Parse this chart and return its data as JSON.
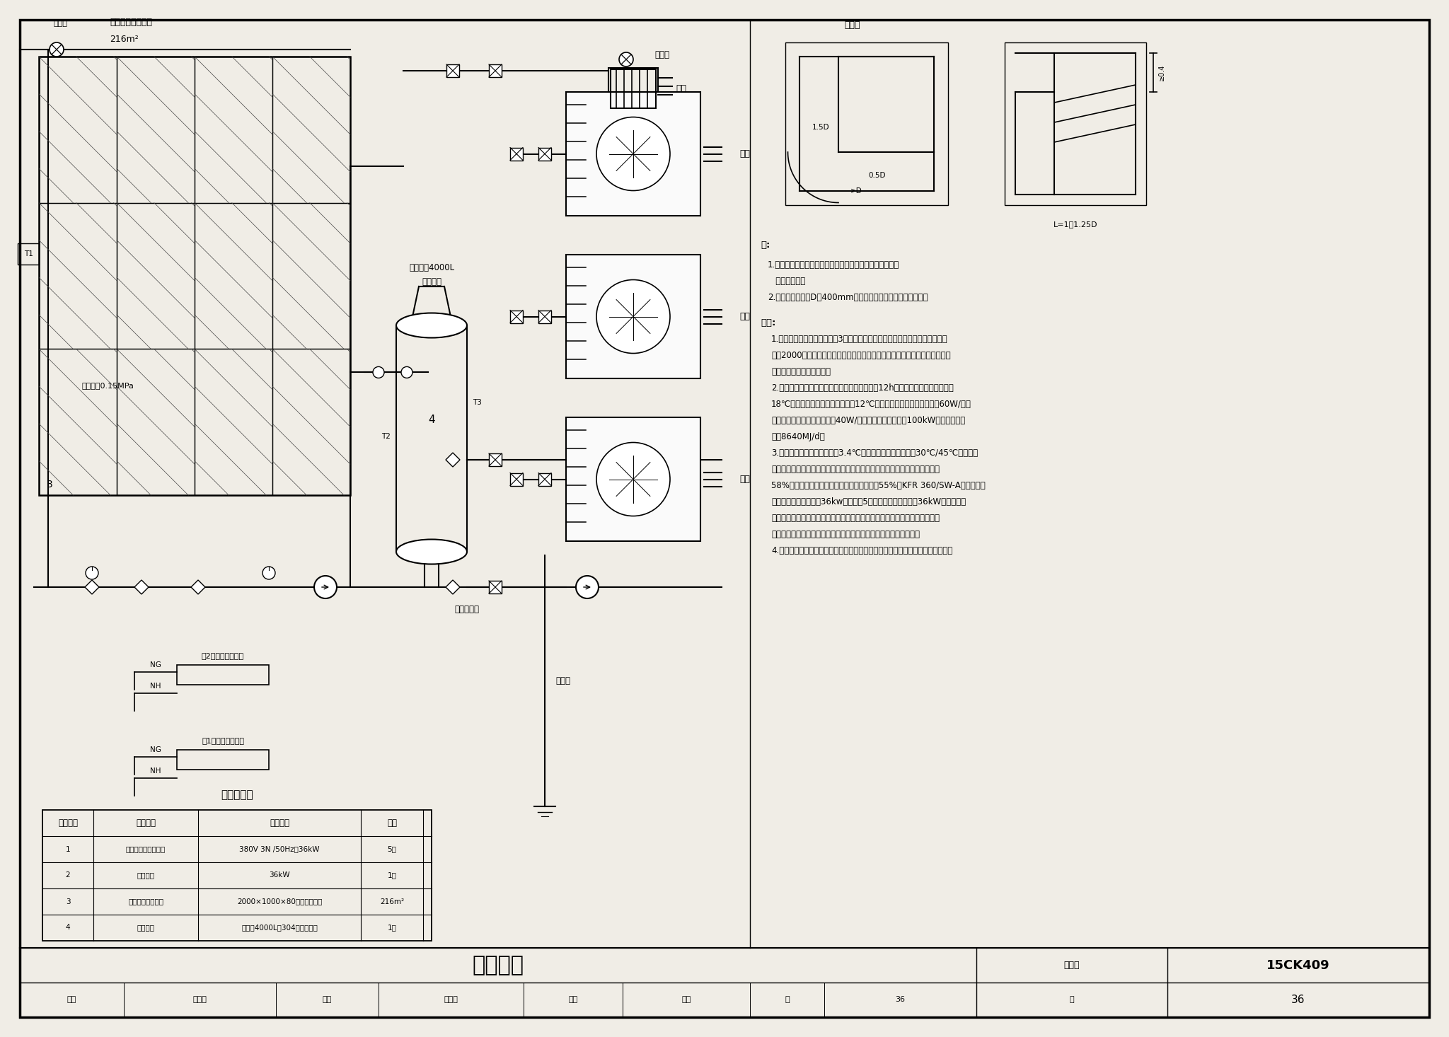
{
  "bg": "#f0ede6",
  "white": "#ffffff",
  "black": "#000000",
  "title_main": "工程实例",
  "title_num_label": "图集号",
  "title_num_value": "15CK409",
  "page_label": "页",
  "page_value": "36",
  "review_label": "审核",
  "review_name": "钟家淞",
  "check_label": "校对",
  "check_name": "王柱小",
  "design_label": "设计",
  "design_name": "李红",
  "table_title": "主要设备表",
  "table_headers": [
    "设备编号",
    "设备名称",
    "规格型号",
    "数量"
  ],
  "table_rows": [
    [
      "1",
      "空气源热泵热水机组",
      "380V 3N /50Hz，36kW",
      "5台"
    ],
    [
      "2",
      "电加热器",
      "36kW",
      "1条"
    ],
    [
      "3",
      "太阳能平板集热器",
      "2000×1000×80，钢化玻璃板",
      "216m²"
    ],
    [
      "4",
      "储热水箱",
      "总容量4000L，304不锈钢内胆",
      "1个"
    ]
  ],
  "note1": "1.若顶出风机组上方的机组进风可能吸入该机组的出风时，",
  "note1b": "   应设置风幛。",
  "note2": "2.若风管弯头半径D＞400mm时，必须增加导风板（如图示）。",
  "desc_lines": [
    "说明:",
    "1.本系统应用场合为一栋独立3层建筑物，建筑用途为企业产品展示厅，供暖面",
    "积为2000㎡，太阳能平板集热器安装在西立面，空气源热泵热水机组安装在室",
    "外，储热水箱安装在室内。",
    "2.供暖热负荷计算。展示厅每天开放参观时间为12h，开放期间室内设定温度为",
    "18℃，非开放时间室内设定温度为12℃。开放时间平均供暖热负荷为60W/㎡，",
    "非开放时间平均供暖热负荷为40W/㎡。系统平均热负荷为100kW，全天供暖负",
    "荷为8640MJ/d。",
    "3.冬季供暖室外计算温度为－3.4℃，空气源热泵热水机组在30℃/45℃（回水／",
    "出水温度）的条件下循环运行，在设计运行条件下机组制热量为额定制热量的",
    "58%，实际可用于供暖的热量为额定制热量的55%，KFR 360/SW-A型空气源热",
    "泵热水机组额定制热量36kw，需配套5台，另外，再额外配备36kW电热加热器",
    "作为辅助热源。由于当地气候干燥，冬季运行时空气源热泵热水机组的蒸发器",
    "不易结霜，所以没有考虑由于结霜现象导致的制热性能衰减的情况。",
    "4.本系统集热器、热泵安装高度已超过储热水箱，因此系统设计为倒流防冻系统。"
  ]
}
